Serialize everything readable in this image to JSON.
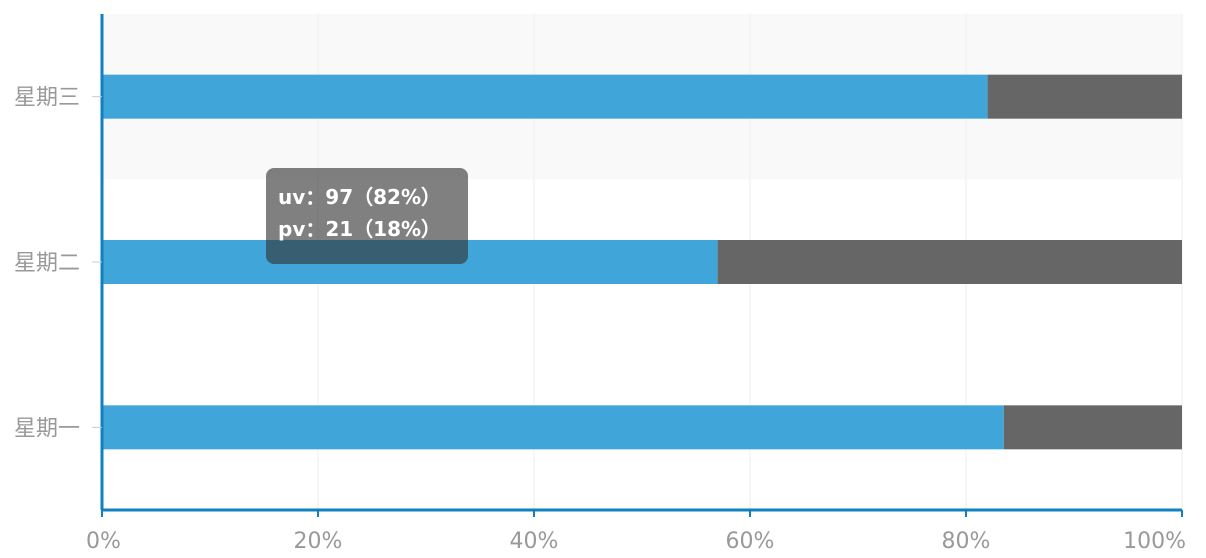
{
  "chart_data": {
    "type": "bar",
    "orientation": "horizontal",
    "stacked": true,
    "normalized_percent": true,
    "categories": [
      "星期一",
      "星期二",
      "星期三"
    ],
    "series": [
      {
        "name": "uv",
        "color": "#40a5d8",
        "values": [
          83.5,
          57,
          82
        ]
      },
      {
        "name": "pv",
        "color": "#666666",
        "values": [
          16.5,
          43,
          18
        ]
      }
    ],
    "x_ticks": [
      "0%",
      "20%",
      "40%",
      "60%",
      "80%",
      "100%"
    ],
    "xlim": [
      0,
      100
    ],
    "grid": true,
    "legend": "none",
    "highlighted_category": "星期三",
    "highlight_color": "#f9f9f9",
    "axis_color": "#1180c0",
    "tick_label_color": "#999999",
    "grid_color": "#eeeeee"
  },
  "tooltip": {
    "line1": "uv：97（82%）",
    "line2": "pv：21（18%）"
  }
}
